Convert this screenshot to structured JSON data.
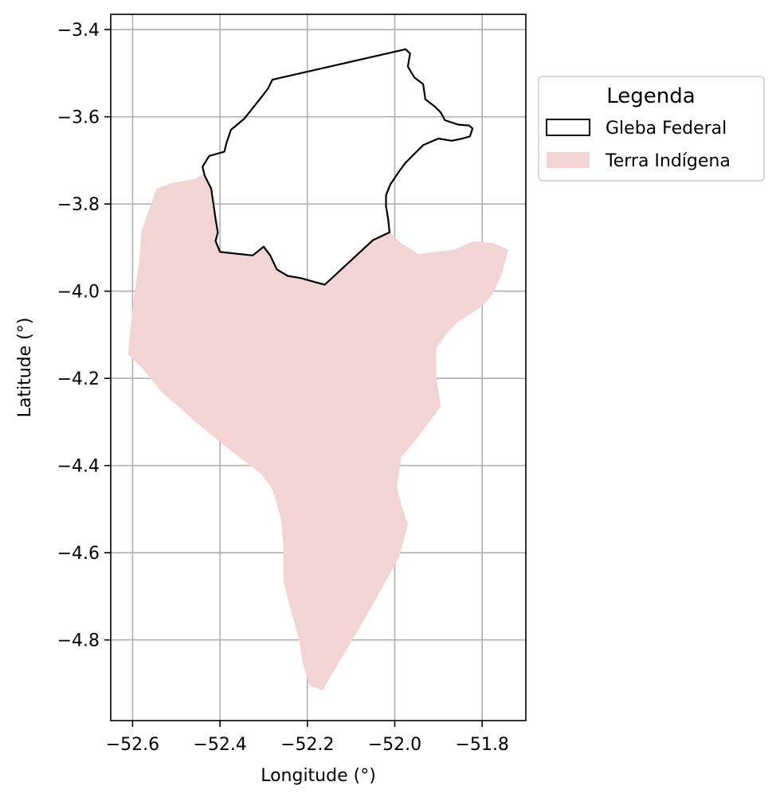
{
  "chart_data": {
    "type": "map",
    "xlabel": "Longitude (°)",
    "ylabel": "Latitude (°)",
    "xlim": [
      -52.65,
      -51.7
    ],
    "ylim": [
      -4.985,
      -3.365
    ],
    "x_ticks": [
      -52.6,
      -52.4,
      -52.2,
      -52.0,
      -51.8
    ],
    "y_ticks": [
      -3.4,
      -3.6,
      -3.8,
      -4.0,
      -4.2,
      -4.4,
      -4.6,
      -4.8
    ],
    "x_tick_labels": [
      "−52.6",
      "−52.4",
      "−52.2",
      "−52.0",
      "−51.8"
    ],
    "y_tick_labels": [
      "−3.4",
      "−3.6",
      "−3.8",
      "−4.0",
      "−4.2",
      "−4.4",
      "−4.6",
      "−4.8"
    ],
    "grid": true,
    "legend": {
      "title": "Legenda",
      "placement": "outside-upper-right",
      "entries": [
        {
          "label": "Gleba Federal",
          "style": "outline"
        },
        {
          "label": "Terra Indígena",
          "style": "fill"
        }
      ]
    },
    "colors": {
      "gleba_edge": "#000000",
      "terra_fill": "#f2d4d4",
      "grid": "#b0b0b0"
    },
    "layers": {
      "gleba_federal": [
        [
          -52.28,
          -3.515
        ],
        [
          -51.975,
          -3.445
        ],
        [
          -51.965,
          -3.455
        ],
        [
          -51.97,
          -3.485
        ],
        [
          -51.955,
          -3.51
        ],
        [
          -51.935,
          -3.525
        ],
        [
          -51.93,
          -3.56
        ],
        [
          -51.91,
          -3.575
        ],
        [
          -51.895,
          -3.59
        ],
        [
          -51.885,
          -3.608
        ],
        [
          -51.855,
          -3.618
        ],
        [
          -51.83,
          -3.62
        ],
        [
          -51.822,
          -3.627
        ],
        [
          -51.828,
          -3.645
        ],
        [
          -51.845,
          -3.65
        ],
        [
          -51.87,
          -3.655
        ],
        [
          -51.9,
          -3.65
        ],
        [
          -51.935,
          -3.665
        ],
        [
          -51.955,
          -3.685
        ],
        [
          -51.975,
          -3.705
        ],
        [
          -51.99,
          -3.725
        ],
        [
          -52.01,
          -3.755
        ],
        [
          -52.02,
          -3.78
        ],
        [
          -52.02,
          -3.805
        ],
        [
          -52.015,
          -3.835
        ],
        [
          -52.012,
          -3.865
        ],
        [
          -52.05,
          -3.883
        ],
        [
          -52.16,
          -3.985
        ],
        [
          -52.18,
          -3.98
        ],
        [
          -52.215,
          -3.97
        ],
        [
          -52.245,
          -3.965
        ],
        [
          -52.27,
          -3.95
        ],
        [
          -52.285,
          -3.918
        ],
        [
          -52.3,
          -3.898
        ],
        [
          -52.325,
          -3.918
        ],
        [
          -52.4,
          -3.91
        ],
        [
          -52.41,
          -3.885
        ],
        [
          -52.405,
          -3.865
        ],
        [
          -52.41,
          -3.835
        ],
        [
          -52.415,
          -3.8
        ],
        [
          -52.42,
          -3.765
        ],
        [
          -52.435,
          -3.735
        ],
        [
          -52.44,
          -3.715
        ],
        [
          -52.425,
          -3.69
        ],
        [
          -52.39,
          -3.68
        ],
        [
          -52.385,
          -3.66
        ],
        [
          -52.375,
          -3.63
        ],
        [
          -52.345,
          -3.605
        ],
        [
          -52.325,
          -3.58
        ],
        [
          -52.305,
          -3.555
        ],
        [
          -52.29,
          -3.535
        ]
      ],
      "terra_indigena": [
        [
          -52.44,
          -3.732
        ],
        [
          -52.455,
          -3.742
        ],
        [
          -52.51,
          -3.752
        ],
        [
          -52.545,
          -3.765
        ],
        [
          -52.565,
          -3.82
        ],
        [
          -52.58,
          -3.865
        ],
        [
          -52.585,
          -3.935
        ],
        [
          -52.595,
          -4.0
        ],
        [
          -52.605,
          -4.085
        ],
        [
          -52.61,
          -4.145
        ],
        [
          -52.575,
          -4.18
        ],
        [
          -52.535,
          -4.23
        ],
        [
          -52.495,
          -4.265
        ],
        [
          -52.45,
          -4.305
        ],
        [
          -52.395,
          -4.35
        ],
        [
          -52.35,
          -4.385
        ],
        [
          -52.305,
          -4.42
        ],
        [
          -52.28,
          -4.455
        ],
        [
          -52.26,
          -4.525
        ],
        [
          -52.255,
          -4.585
        ],
        [
          -52.255,
          -4.665
        ],
        [
          -52.24,
          -4.725
        ],
        [
          -52.22,
          -4.795
        ],
        [
          -52.21,
          -4.855
        ],
        [
          -52.195,
          -4.905
        ],
        [
          -52.165,
          -4.915
        ],
        [
          -52.065,
          -4.745
        ],
        [
          -51.99,
          -4.61
        ],
        [
          -51.97,
          -4.535
        ],
        [
          -51.985,
          -4.49
        ],
        [
          -51.995,
          -4.45
        ],
        [
          -51.985,
          -4.38
        ],
        [
          -51.955,
          -4.345
        ],
        [
          -51.895,
          -4.265
        ],
        [
          -51.905,
          -4.195
        ],
        [
          -51.905,
          -4.13
        ],
        [
          -51.88,
          -4.095
        ],
        [
          -51.855,
          -4.07
        ],
        [
          -51.8,
          -4.035
        ],
        [
          -51.775,
          -4.005
        ],
        [
          -51.755,
          -3.96
        ],
        [
          -51.74,
          -3.905
        ],
        [
          -51.775,
          -3.89
        ],
        [
          -51.82,
          -3.885
        ],
        [
          -51.865,
          -3.905
        ],
        [
          -51.91,
          -3.91
        ],
        [
          -51.945,
          -3.915
        ],
        [
          -51.985,
          -3.89
        ],
        [
          -52.012,
          -3.865
        ],
        [
          -52.05,
          -3.883
        ],
        [
          -52.16,
          -3.985
        ],
        [
          -52.18,
          -3.98
        ],
        [
          -52.215,
          -3.97
        ],
        [
          -52.245,
          -3.965
        ],
        [
          -52.27,
          -3.95
        ],
        [
          -52.285,
          -3.918
        ],
        [
          -52.3,
          -3.898
        ],
        [
          -52.325,
          -3.918
        ],
        [
          -52.4,
          -3.91
        ],
        [
          -52.41,
          -3.885
        ],
        [
          -52.405,
          -3.865
        ],
        [
          -52.41,
          -3.835
        ],
        [
          -52.415,
          -3.8
        ],
        [
          -52.42,
          -3.765
        ],
        [
          -52.435,
          -3.735
        ]
      ]
    }
  }
}
